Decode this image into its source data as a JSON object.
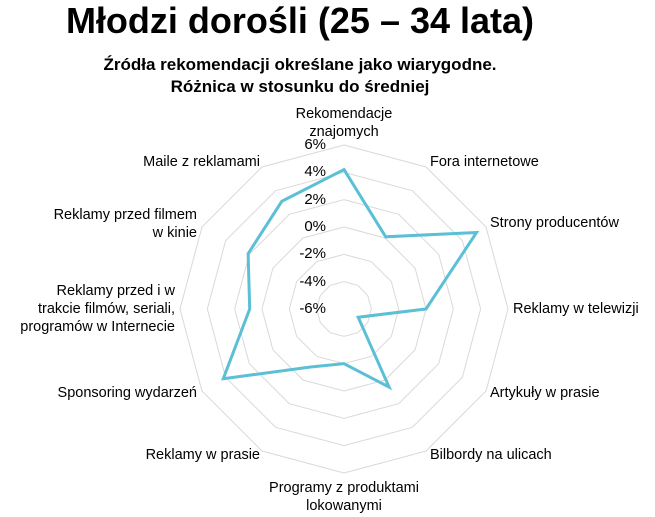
{
  "title": "Młodzi dorośli (25 – 34 lata)",
  "chart_data": {
    "type": "radar",
    "title": [
      "Źródła rekomendacji określane jako wiarygodne.",
      "Różnica w stosunku do średniej"
    ],
    "categories": [
      [
        "Rekomendacje",
        "znajomych"
      ],
      [
        "Fora internetowe"
      ],
      [
        "Strony producentów"
      ],
      [
        "Reklamy w telewizji"
      ],
      [
        "Artykuły w prasie"
      ],
      [
        "Bilbordy na ulicach"
      ],
      [
        "Programy z produktami",
        "lokowanymi"
      ],
      [
        "Reklamy w prasie"
      ],
      [
        "Sponsoring wydarzeń"
      ],
      [
        "Reklamy przed i w",
        "trakcie filmów, seriali,",
        "programów w Internecie"
      ],
      [
        "Reklamy przed filmem",
        "w kinie"
      ],
      [
        "Maile z reklamami"
      ]
    ],
    "values": [
      4.2,
      0.1,
      5.2,
      0.0,
      -4.8,
      0.6,
      -2.0,
      -1.1,
      4.2,
      0.9,
      2.1,
      3.1
    ],
    "axis_range": [
      -6,
      6
    ],
    "tick_labels": [
      "6%",
      "4%",
      "2%",
      "0%",
      "-2%",
      "-4%",
      "-6%"
    ],
    "tick_values": [
      6,
      4,
      2,
      0,
      -2,
      -4,
      -6
    ],
    "grid": true,
    "legend": "none",
    "colors": {
      "series": "#5bbfd6",
      "grid": "#d9d9d9"
    }
  }
}
